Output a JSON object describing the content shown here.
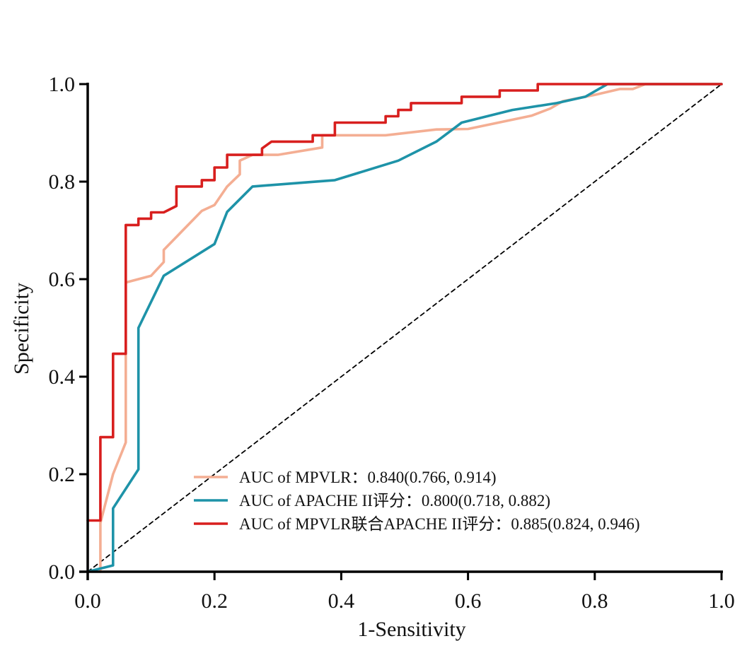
{
  "chart_data": {
    "type": "line",
    "title": "",
    "xlabel": "1-Sensitivity",
    "ylabel": "Specificity",
    "xlim": [
      0,
      1
    ],
    "ylim": [
      0,
      1
    ],
    "x_ticks": [
      "0.0",
      "0.2",
      "0.4",
      "0.6",
      "0.8",
      "1.0"
    ],
    "y_ticks": [
      "0.0",
      "0.2",
      "0.4",
      "0.6",
      "0.8",
      "1.0"
    ],
    "grid": false,
    "legend_position": "bottom-center",
    "series": [
      {
        "name": "MPVLR",
        "legend": "AUC of MPVLR：0.840(0.766, 0.914)",
        "color": "#F4AE93",
        "points": [
          [
            0.02,
            0.0
          ],
          [
            0.02,
            0.1
          ],
          [
            0.04,
            0.2
          ],
          [
            0.06,
            0.265
          ],
          [
            0.06,
            0.593
          ],
          [
            0.1,
            0.607
          ],
          [
            0.12,
            0.635
          ],
          [
            0.12,
            0.66
          ],
          [
            0.18,
            0.74
          ],
          [
            0.2,
            0.752
          ],
          [
            0.22,
            0.79
          ],
          [
            0.24,
            0.815
          ],
          [
            0.24,
            0.843
          ],
          [
            0.26,
            0.855
          ],
          [
            0.3,
            0.855
          ],
          [
            0.37,
            0.87
          ],
          [
            0.37,
            0.895
          ],
          [
            0.47,
            0.895
          ],
          [
            0.55,
            0.907
          ],
          [
            0.6,
            0.908
          ],
          [
            0.7,
            0.935
          ],
          [
            0.73,
            0.95
          ],
          [
            0.75,
            0.965
          ],
          [
            0.8,
            0.978
          ],
          [
            0.84,
            0.99
          ],
          [
            0.86,
            0.99
          ],
          [
            0.88,
            1.0
          ],
          [
            1.0,
            1.0
          ]
        ]
      },
      {
        "name": "APACHE II评分",
        "legend": "AUC of APACHE II评分：0.800(0.718, 0.882)",
        "color": "#1E93A8",
        "points": [
          [
            0.0,
            0.0
          ],
          [
            0.04,
            0.013
          ],
          [
            0.04,
            0.13
          ],
          [
            0.08,
            0.21
          ],
          [
            0.08,
            0.5
          ],
          [
            0.12,
            0.607
          ],
          [
            0.2,
            0.672
          ],
          [
            0.22,
            0.738
          ],
          [
            0.26,
            0.79
          ],
          [
            0.39,
            0.803
          ],
          [
            0.49,
            0.843
          ],
          [
            0.55,
            0.882
          ],
          [
            0.59,
            0.921
          ],
          [
            0.67,
            0.947
          ],
          [
            0.74,
            0.961
          ],
          [
            0.785,
            0.974
          ],
          [
            0.82,
            1.0
          ],
          [
            1.0,
            1.0
          ]
        ]
      },
      {
        "name": "MPVLR联合APACHE II评分",
        "legend": "AUC of MPVLR联合APACHE II评分：0.885(0.824, 0.946)",
        "color": "#D81F1E",
        "points": [
          [
            0.0,
            0.105
          ],
          [
            0.02,
            0.105
          ],
          [
            0.02,
            0.276
          ],
          [
            0.04,
            0.276
          ],
          [
            0.04,
            0.447
          ],
          [
            0.06,
            0.447
          ],
          [
            0.06,
            0.711
          ],
          [
            0.08,
            0.711
          ],
          [
            0.08,
            0.724
          ],
          [
            0.1,
            0.724
          ],
          [
            0.1,
            0.737
          ],
          [
            0.12,
            0.737
          ],
          [
            0.14,
            0.75
          ],
          [
            0.14,
            0.79
          ],
          [
            0.18,
            0.79
          ],
          [
            0.18,
            0.803
          ],
          [
            0.2,
            0.803
          ],
          [
            0.2,
            0.829
          ],
          [
            0.22,
            0.829
          ],
          [
            0.22,
            0.855
          ],
          [
            0.275,
            0.855
          ],
          [
            0.275,
            0.868
          ],
          [
            0.29,
            0.882
          ],
          [
            0.355,
            0.882
          ],
          [
            0.355,
            0.895
          ],
          [
            0.39,
            0.895
          ],
          [
            0.39,
            0.921
          ],
          [
            0.47,
            0.921
          ],
          [
            0.47,
            0.934
          ],
          [
            0.49,
            0.934
          ],
          [
            0.49,
            0.947
          ],
          [
            0.51,
            0.947
          ],
          [
            0.51,
            0.961
          ],
          [
            0.59,
            0.961
          ],
          [
            0.59,
            0.974
          ],
          [
            0.65,
            0.974
          ],
          [
            0.65,
            0.987
          ],
          [
            0.71,
            0.987
          ],
          [
            0.71,
            1.0
          ],
          [
            1.0,
            1.0
          ]
        ]
      },
      {
        "name": "reference",
        "legend": "",
        "color": "#000000",
        "dashed": true,
        "points": [
          [
            0,
            0
          ],
          [
            1,
            1
          ]
        ]
      }
    ]
  }
}
